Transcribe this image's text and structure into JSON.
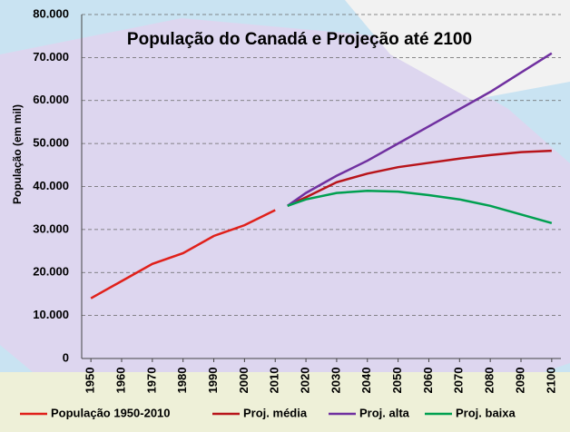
{
  "chart_data": {
    "type": "line",
    "title": "População do Canadá e Projeção até 2100",
    "y_label": "População (em mil)",
    "xlim": [
      1947,
      2103
    ],
    "xticks": [
      1950,
      1960,
      1970,
      1980,
      1990,
      2000,
      2010,
      2020,
      2030,
      2040,
      2050,
      2060,
      2070,
      2080,
      2090,
      2100
    ],
    "ylim": [
      0,
      80000
    ],
    "yticks": [
      0,
      {
        "value": 10000,
        "label": "10.000"
      },
      {
        "value": 20000,
        "label": "20.000"
      },
      {
        "value": 30000,
        "label": "30.000"
      },
      {
        "value": 40000,
        "label": "40.000"
      },
      {
        "value": 50000,
        "label": "50.000"
      },
      {
        "value": 60000,
        "label": "60.000"
      },
      {
        "value": 70000,
        "label": "70.000"
      },
      {
        "value": 80000,
        "label": "80.000"
      }
    ],
    "grid": true,
    "legend": "bottom",
    "series": [
      {
        "name": "População 1950-2010",
        "color": "#e0201a",
        "x": [
          1950,
          1960,
          1970,
          1980,
          1990,
          2000,
          2010
        ],
        "values": [
          14000,
          18000,
          22000,
          24500,
          28500,
          31000,
          34500
        ]
      },
      {
        "name": "Proj. média",
        "color": "#b8141a",
        "x": [
          2014,
          2020,
          2030,
          2040,
          2050,
          2060,
          2070,
          2080,
          2090,
          2100
        ],
        "values": [
          35500,
          37500,
          41000,
          43000,
          44500,
          45500,
          46500,
          47300,
          48000,
          48300
        ]
      },
      {
        "name": "Proj. alta",
        "color": "#7030a0",
        "x": [
          2014,
          2020,
          2030,
          2040,
          2050,
          2060,
          2070,
          2080,
          2090,
          2100
        ],
        "values": [
          35500,
          38500,
          42500,
          46000,
          50000,
          54000,
          58000,
          62000,
          66500,
          71000
        ]
      },
      {
        "name": "Proj. baixa",
        "color": "#00a050",
        "x": [
          2014,
          2020,
          2030,
          2040,
          2050,
          2060,
          2070,
          2080,
          2090,
          2100
        ],
        "values": [
          35500,
          37000,
          38500,
          39000,
          38800,
          38000,
          37000,
          35500,
          33500,
          31500
        ]
      }
    ]
  }
}
